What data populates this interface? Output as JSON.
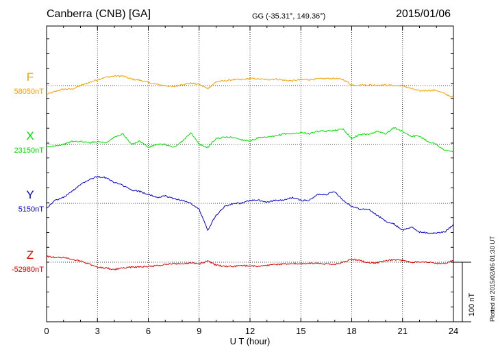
{
  "header": {
    "station": "Canberra (CNB)  [GA]",
    "coords": "GG (-35.31°, 149.36°)",
    "date": "2015/01/06"
  },
  "credit": "Plotted at 2015/02/06 01:30 UT",
  "chart_data": {
    "type": "line",
    "xlabel": "U T (hour)",
    "xlim": [
      0,
      24
    ],
    "xticks": [
      "0",
      "3",
      "6",
      "9",
      "12",
      "15",
      "18",
      "21",
      "24"
    ],
    "scale_bar": "100 nT",
    "grid": true,
    "colors": {
      "F": "#f5a000",
      "X": "#00e000",
      "Y": "#0000d0",
      "Z": "#e00000"
    },
    "series": [
      {
        "name": "F",
        "baseline_label": "58050nT",
        "x": [
          0,
          0.5,
          1,
          1.5,
          2,
          2.5,
          3,
          3.5,
          4,
          4.5,
          5,
          5.5,
          6,
          6.5,
          7,
          7.5,
          8,
          8.5,
          9,
          9.5,
          10,
          10.5,
          11,
          11.5,
          12,
          12.5,
          13,
          13.5,
          14,
          14.5,
          15,
          15.5,
          16,
          16.5,
          17,
          17.5,
          18,
          18.5,
          19,
          19.5,
          20,
          20.5,
          21,
          21.5,
          22,
          22.5,
          23,
          23.5,
          24
        ],
        "values": [
          -15,
          -10,
          -6,
          -6,
          0,
          5,
          10,
          14,
          16,
          16,
          11,
          9,
          5,
          2,
          0,
          -2,
          2,
          4,
          2,
          -5,
          6,
          8,
          10,
          10,
          12,
          11,
          10,
          11,
          9,
          8,
          10,
          10,
          11,
          12,
          12,
          10,
          1,
          1,
          1,
          1,
          1,
          0,
          0,
          -5,
          -9,
          -8,
          -8,
          -14,
          -20
        ]
      },
      {
        "name": "X",
        "baseline_label": "23150nT",
        "x": [
          0,
          0.5,
          1,
          1.5,
          2,
          2.5,
          3,
          3.5,
          4,
          4.5,
          5,
          5.5,
          6,
          6.5,
          7,
          7.5,
          8,
          8.5,
          9,
          9.5,
          10,
          10.5,
          11,
          11.5,
          12,
          12.5,
          13,
          13.5,
          14,
          14.5,
          15,
          15.5,
          16,
          16.5,
          17,
          17.5,
          18,
          18.5,
          19,
          19.5,
          20,
          20.5,
          21,
          21.5,
          22,
          22.5,
          23,
          23.5,
          24
        ],
        "values": [
          -5,
          -2,
          0,
          5,
          5,
          3,
          5,
          3,
          12,
          18,
          0,
          6,
          -5,
          0,
          0,
          -5,
          5,
          20,
          0,
          -5,
          10,
          12,
          12,
          8,
          6,
          11,
          12,
          14,
          18,
          18,
          20,
          18,
          22,
          22,
          24,
          26,
          10,
          17,
          17,
          22,
          18,
          28,
          22,
          14,
          14,
          5,
          0,
          -10,
          -12
        ]
      },
      {
        "name": "Y",
        "baseline_label": "5150nT",
        "x": [
          0,
          0.5,
          1,
          1.5,
          2,
          2.5,
          3,
          3.5,
          4,
          4.5,
          5,
          5.5,
          6,
          6.5,
          7,
          7.5,
          8,
          8.5,
          9,
          9.5,
          10,
          10.5,
          11,
          11.5,
          12,
          12.5,
          13,
          13.5,
          14,
          14.5,
          15,
          15.5,
          16,
          16.5,
          17,
          17.5,
          18,
          18.5,
          19,
          19.5,
          20,
          20.5,
          21,
          21.5,
          22,
          22.5,
          23,
          23.5,
          24
        ],
        "values": [
          -8,
          5,
          10,
          20,
          32,
          40,
          45,
          43,
          35,
          30,
          22,
          20,
          15,
          10,
          12,
          8,
          5,
          0,
          -10,
          -45,
          -20,
          -5,
          0,
          0,
          5,
          5,
          2,
          5,
          5,
          10,
          5,
          5,
          15,
          15,
          20,
          5,
          -5,
          -10,
          -10,
          -20,
          -30,
          -35,
          -45,
          -40,
          -48,
          -50,
          -50,
          -48,
          -35
        ]
      },
      {
        "name": "Z",
        "baseline_label": "-52980nT",
        "x": [
          0,
          0.5,
          1,
          1.5,
          2,
          2.5,
          3,
          3.5,
          4,
          4.5,
          5,
          5.5,
          6,
          6.5,
          7,
          7.5,
          8,
          8.5,
          9,
          9.5,
          10,
          10.5,
          11,
          11.5,
          12,
          12.5,
          13,
          13.5,
          14,
          14.5,
          15,
          15.5,
          16,
          16.5,
          17,
          17.5,
          18,
          18.5,
          19,
          19.5,
          20,
          20.5,
          21,
          21.5,
          22,
          22.5,
          23,
          23.5,
          24
        ],
        "values": [
          10,
          8,
          8,
          5,
          2,
          -3,
          -8,
          -10,
          -12,
          -10,
          -8,
          -8,
          -7,
          -6,
          -4,
          -2,
          -3,
          -1,
          -3,
          2,
          -5,
          -7,
          -7,
          -6,
          -6,
          -7,
          -5,
          -4,
          -3,
          -2,
          -3,
          -2,
          -2,
          -3,
          -4,
          0,
          5,
          3,
          -1,
          -1,
          2,
          4,
          3,
          0,
          1,
          0,
          -2,
          -2,
          3
        ]
      }
    ]
  }
}
